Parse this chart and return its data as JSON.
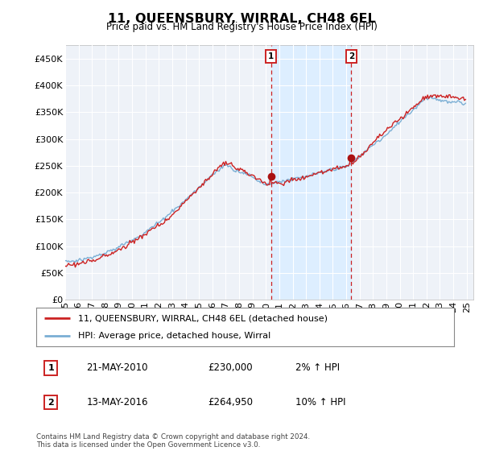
{
  "title": "11, QUEENSBURY, WIRRAL, CH48 6EL",
  "subtitle": "Price paid vs. HM Land Registry's House Price Index (HPI)",
  "hpi_label": "HPI: Average price, detached house, Wirral",
  "property_label": "11, QUEENSBURY, WIRRAL, CH48 6EL (detached house)",
  "sale1_date": "21-MAY-2010",
  "sale1_price": 230000,
  "sale1_pct": "2%",
  "sale2_date": "13-MAY-2016",
  "sale2_price": 264950,
  "sale2_pct": "10%",
  "footer": "Contains HM Land Registry data © Crown copyright and database right 2024.\nThis data is licensed under the Open Government Licence v3.0.",
  "hpi_line_color": "#7aaed4",
  "property_color": "#cc2222",
  "sale_marker_color": "#aa1111",
  "dashed_line_color": "#cc2222",
  "shade_color": "#ddeeff",
  "background_color": "#ffffff",
  "plot_bg_color": "#eef2f8",
  "grid_color": "#ffffff",
  "ylim": [
    0,
    475000
  ],
  "yticks": [
    0,
    50000,
    100000,
    150000,
    200000,
    250000,
    300000,
    350000,
    400000,
    450000
  ],
  "sale1_year_f": 2010.375,
  "sale2_year_f": 2016.375,
  "xmin": 1995,
  "xmax": 2025.5
}
